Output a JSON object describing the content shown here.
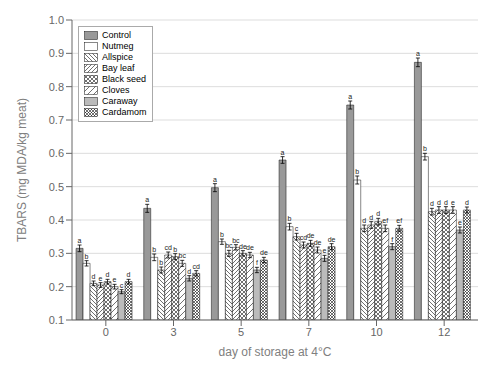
{
  "chart_data": {
    "type": "bar",
    "xlabel": "day of storage at 4°C",
    "ylabel": "TBARS (mg MDA/kg meat)",
    "categories": [
      "0",
      "3",
      "5",
      "7",
      "10",
      "12"
    ],
    "series": [
      {
        "name": "Control",
        "color": "#999999",
        "values": [
          0.315,
          0.435,
          0.497,
          0.58,
          0.745,
          0.873
        ],
        "errors": [
          0.01,
          0.012,
          0.012,
          0.01,
          0.012,
          0.013
        ],
        "letters": [
          "a",
          "a",
          "a",
          "a",
          "a",
          "a"
        ]
      },
      {
        "name": "Nutmeg",
        "color": "#ffffff",
        "values": [
          0.27,
          0.288,
          0.335,
          0.38,
          0.52,
          0.59
        ],
        "errors": [
          0.008,
          0.01,
          0.008,
          0.01,
          0.012,
          0.01
        ],
        "letters": [
          "b",
          "b",
          "b",
          "b",
          "b",
          "b"
        ]
      },
      {
        "name": "Allspice",
        "color": "#ffffff",
        "values": [
          0.21,
          0.25,
          0.3,
          0.35,
          0.375,
          0.425
        ],
        "errors": [
          0.007,
          0.009,
          0.009,
          0.01,
          0.01,
          0.01
        ],
        "letters": [
          "d",
          "b",
          "bc",
          "c",
          "d",
          "d"
        ]
      },
      {
        "name": "Bay leaf",
        "color": "#ffffff",
        "values": [
          0.205,
          0.295,
          0.318,
          0.325,
          0.385,
          0.43
        ],
        "errors": [
          0.007,
          0.009,
          0.008,
          0.009,
          0.01,
          0.01
        ],
        "letters": [
          "e",
          "cd",
          "bc",
          "cd",
          "d",
          "d"
        ]
      },
      {
        "name": "Black seed",
        "color": "#ffffff",
        "values": [
          0.215,
          0.29,
          0.3,
          0.33,
          0.395,
          0.43
        ],
        "errors": [
          0.007,
          0.009,
          0.008,
          0.009,
          0.01,
          0.01
        ],
        "letters": [
          "d",
          "b",
          "de",
          "de",
          "d",
          "d"
        ]
      },
      {
        "name": "Cloves",
        "color": "#ffffff",
        "values": [
          0.2,
          0.27,
          0.295,
          0.31,
          0.375,
          0.43
        ],
        "errors": [
          0.007,
          0.009,
          0.008,
          0.009,
          0.01,
          0.01
        ],
        "letters": [
          "e",
          "bc",
          "de",
          "de",
          "ef",
          "e"
        ]
      },
      {
        "name": "Caraway",
        "color": "#bbbbbb",
        "values": [
          0.185,
          0.225,
          0.25,
          0.285,
          0.32,
          0.37
        ],
        "errors": [
          0.006,
          0.008,
          0.008,
          0.009,
          0.009,
          0.009
        ],
        "letters": [
          "c",
          "d",
          "f",
          "e",
          "f",
          "e"
        ]
      },
      {
        "name": "Cardamom",
        "color": "#ffffff",
        "values": [
          0.215,
          0.24,
          0.28,
          0.32,
          0.375,
          0.43
        ],
        "errors": [
          0.007,
          0.008,
          0.008,
          0.009,
          0.009,
          0.009
        ],
        "letters": [
          "d",
          "cd",
          "de",
          "de",
          "ef",
          "d"
        ]
      }
    ],
    "ylim": [
      0.1,
      1.0
    ],
    "yticks": [
      0.1,
      0.2,
      0.3,
      0.4,
      0.5,
      0.6,
      0.7,
      0.8,
      0.9,
      {
        "value": 1.0,
        "label": "1.0"
      }
    ],
    "grid": true,
    "legend": "upper left"
  }
}
